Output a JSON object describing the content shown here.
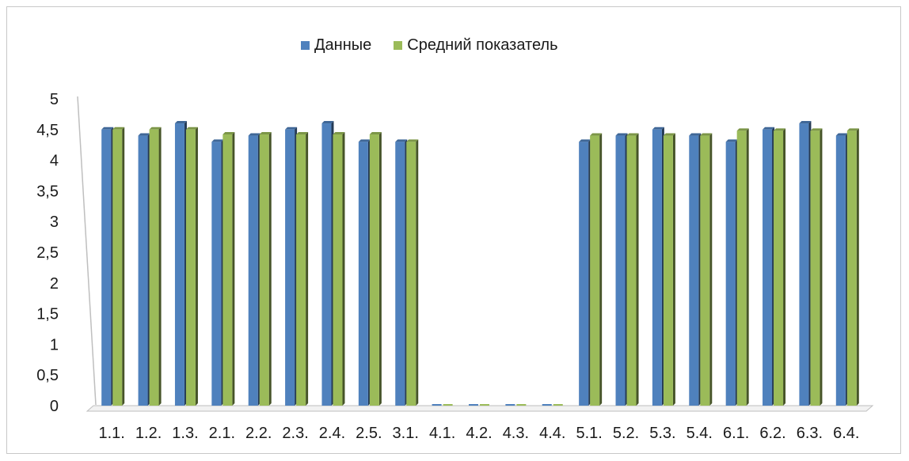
{
  "chart_data": {
    "type": "bar",
    "title": "",
    "xlabel": "",
    "ylabel": "",
    "ylim": [
      0,
      5
    ],
    "yticks": [
      "0",
      "0,5",
      "1",
      "1,5",
      "2",
      "2,5",
      "3",
      "3,5",
      "4",
      "4,5",
      "5"
    ],
    "yticks_values": [
      0,
      0.5,
      1,
      1.5,
      2,
      2.5,
      3,
      3.5,
      4,
      4.5,
      5
    ],
    "legend_position": "top",
    "grid": false,
    "categories": [
      "1.1.",
      "1.2.",
      "1.3.",
      "2.1.",
      "2.2.",
      "2.3.",
      "2.4.",
      "2.5.",
      "3.1.",
      "4.1.",
      "4.2.",
      "4.3.",
      "4.4.",
      "5.1.",
      "5.2.",
      "5.3.",
      "5.4.",
      "6.1.",
      "6.2.",
      "6.3.",
      "6.4."
    ],
    "series": [
      {
        "name": "Данные",
        "color": "#4f81bd",
        "values": [
          4.5,
          4.4,
          4.6,
          4.3,
          4.4,
          4.5,
          4.6,
          4.3,
          4.3,
          0,
          0,
          0,
          0,
          4.3,
          4.4,
          4.5,
          4.4,
          4.3,
          4.5,
          4.6,
          4.4
        ]
      },
      {
        "name": "Средний показатель",
        "color": "#9bbb59",
        "values": [
          4.5,
          4.5,
          4.5,
          4.42,
          4.42,
          4.42,
          4.42,
          4.42,
          4.3,
          0,
          0,
          0,
          0,
          4.4,
          4.4,
          4.4,
          4.4,
          4.48,
          4.48,
          4.48,
          4.48
        ]
      }
    ]
  }
}
